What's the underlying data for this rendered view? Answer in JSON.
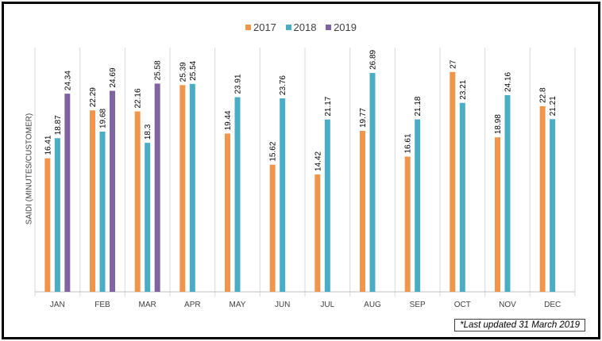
{
  "chart_data": {
    "type": "bar",
    "title": "",
    "xlabel": "",
    "ylabel": "SAIDI (MINUTES/CUSTOMER)",
    "ylim": [
      0,
      30
    ],
    "grid": "vertical category separators",
    "legend_position": "top-center",
    "categories": [
      "JAN",
      "FEB",
      "MAR",
      "APR",
      "MAY",
      "JUN",
      "JUL",
      "AUG",
      "SEP",
      "OCT",
      "NOV",
      "DEC"
    ],
    "series": [
      {
        "name": "2017",
        "color": "#f0964c",
        "values": [
          16.41,
          22.29,
          22.16,
          25.39,
          19.44,
          15.62,
          14.42,
          19.77,
          16.61,
          27,
          18.98,
          22.8
        ],
        "labels": [
          "16.41",
          "22.29",
          "22.16",
          "25.39",
          "19.44",
          "15.62",
          "14.42",
          "19.77",
          "16.61",
          "27",
          "18.98",
          "22.8"
        ]
      },
      {
        "name": "2018",
        "color": "#4bacc6",
        "values": [
          18.87,
          19.68,
          18.3,
          25.54,
          23.91,
          23.76,
          21.17,
          26.89,
          21.18,
          23.21,
          24.16,
          21.21
        ],
        "labels": [
          "18.87",
          "19.68",
          "18.3",
          "25.54",
          "23.91",
          "23.76",
          "21.17",
          "26.89",
          "21.18",
          "23.21",
          "24.16",
          "21.21"
        ]
      },
      {
        "name": "2019",
        "color": "#8064a2",
        "values": [
          24.34,
          24.69,
          25.58,
          null,
          null,
          null,
          null,
          null,
          null,
          null,
          null,
          null
        ],
        "labels": [
          "24.34",
          "24.69",
          "25.58",
          null,
          null,
          null,
          null,
          null,
          null,
          null,
          null,
          null
        ]
      }
    ]
  },
  "footnote": "*Last updated 31 March 2019"
}
